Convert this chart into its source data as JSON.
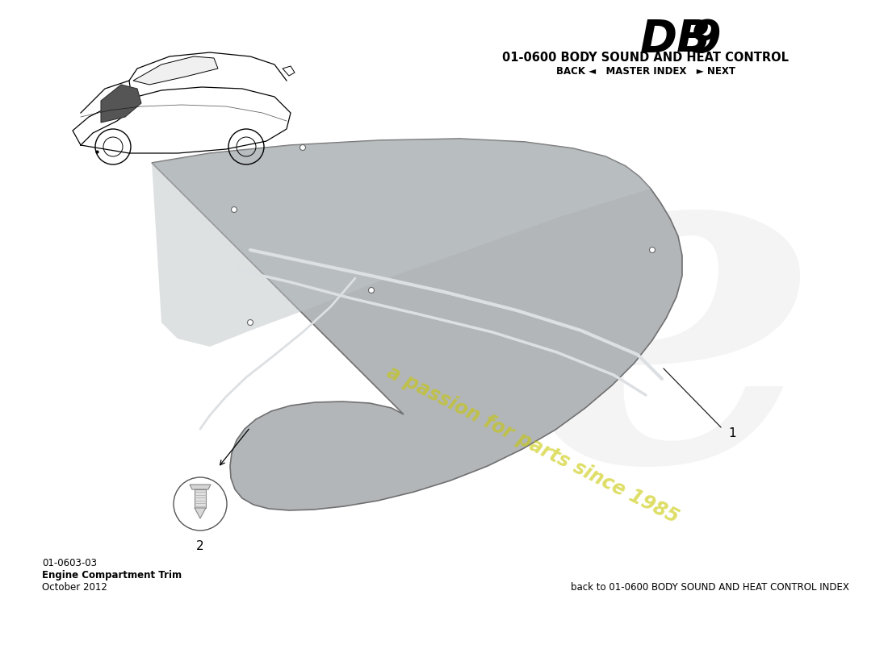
{
  "title_db": "DB",
  "title_9": "9",
  "title_section": "01-0600 BODY SOUND AND HEAT CONTROL",
  "nav_text": "BACK ◄   MASTER INDEX   ► NEXT",
  "part_number": "01-0603-03",
  "part_name": "Engine Compartment Trim",
  "date": "October 2012",
  "footer_text": "back to 01-0600 BODY SOUND AND HEAT CONTROL INDEX",
  "watermark_text": "a passion for parts since 1985",
  "bg_color": "#ffffff",
  "trim_color": "#b2b6b9",
  "trim_edge_color": "#888888",
  "seam_color": "#d8dce0",
  "callout_color": "#222222",
  "part1_label": "1",
  "part2_label": "2"
}
